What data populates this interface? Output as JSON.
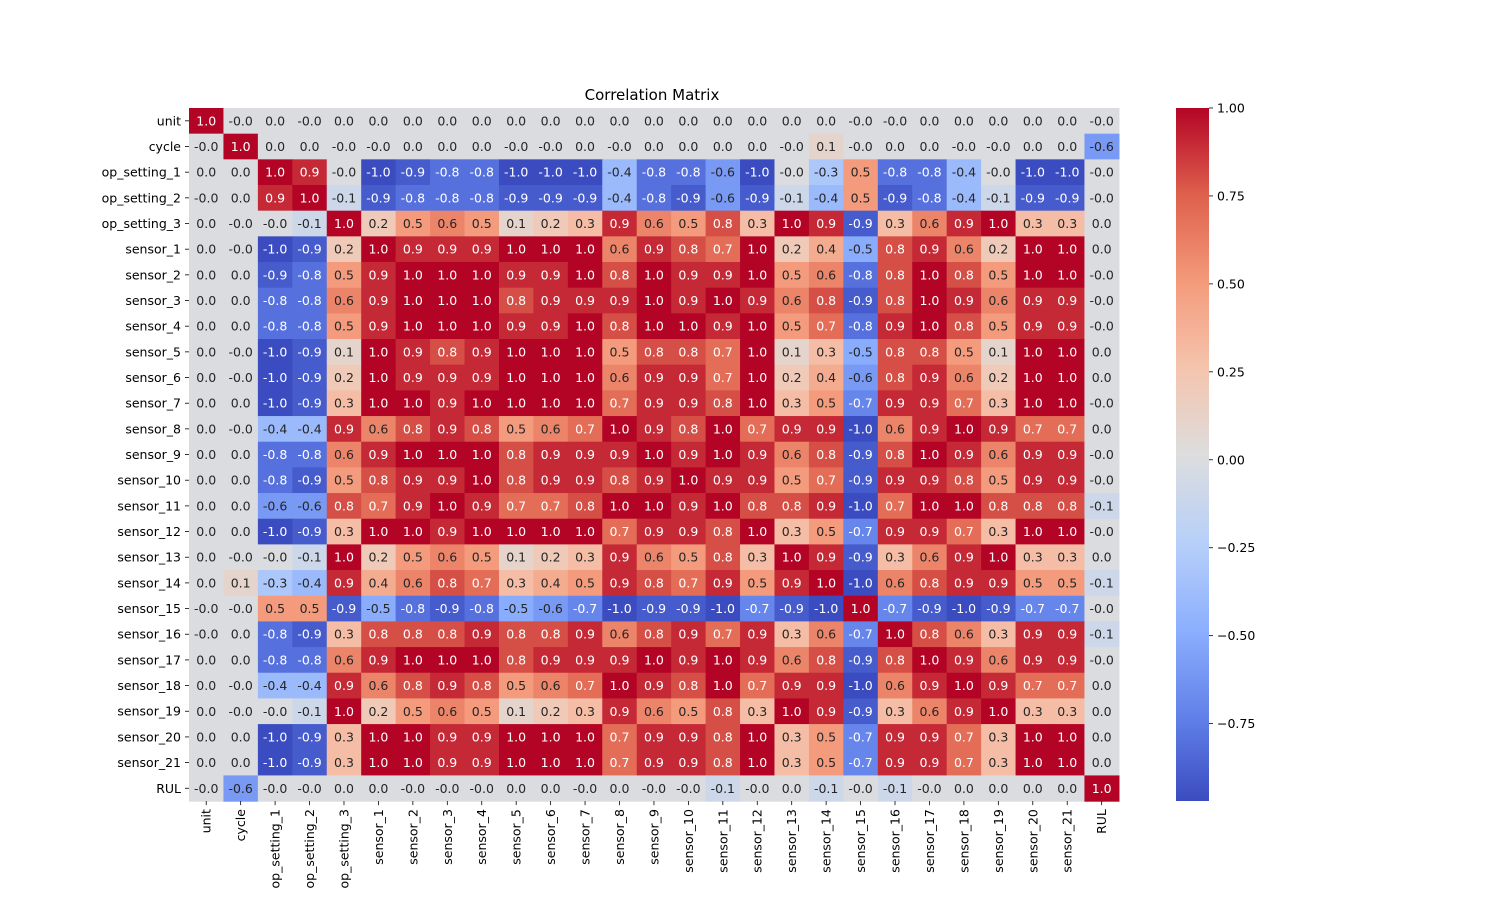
{
  "chart_data": {
    "type": "heatmap",
    "title": "Correlation Matrix",
    "xlabel": "",
    "ylabel": "",
    "labels": [
      "unit",
      "cycle",
      "op_setting_1",
      "op_setting_2",
      "op_setting_3",
      "sensor_1",
      "sensor_2",
      "sensor_3",
      "sensor_4",
      "sensor_5",
      "sensor_6",
      "sensor_7",
      "sensor_8",
      "sensor_9",
      "sensor_10",
      "sensor_11",
      "sensor_12",
      "sensor_13",
      "sensor_14",
      "sensor_15",
      "sensor_16",
      "sensor_17",
      "sensor_18",
      "sensor_19",
      "sensor_20",
      "sensor_21",
      "RUL"
    ],
    "values": [
      [
        1.0,
        -0.0,
        0.0,
        -0.0,
        0.0,
        0.0,
        0.0,
        0.0,
        0.0,
        0.0,
        0.0,
        0.0,
        0.0,
        0.0,
        0.0,
        0.0,
        0.0,
        0.0,
        0.0,
        -0.0,
        -0.0,
        0.0,
        0.0,
        0.0,
        0.0,
        0.0,
        -0.0
      ],
      [
        -0.0,
        1.0,
        0.0,
        0.0,
        -0.0,
        -0.0,
        0.0,
        0.0,
        0.0,
        -0.0,
        -0.0,
        0.0,
        -0.0,
        0.0,
        0.0,
        0.0,
        0.0,
        -0.0,
        0.1,
        -0.0,
        0.0,
        0.0,
        -0.0,
        -0.0,
        0.0,
        0.0,
        -0.6
      ],
      [
        0.0,
        0.0,
        1.0,
        0.9,
        -0.0,
        -1.0,
        -0.9,
        -0.8,
        -0.8,
        -1.0,
        -1.0,
        -1.0,
        -0.4,
        -0.8,
        -0.8,
        -0.6,
        -1.0,
        -0.0,
        -0.3,
        0.5,
        -0.8,
        -0.8,
        -0.4,
        -0.0,
        -1.0,
        -1.0,
        -0.0
      ],
      [
        -0.0,
        0.0,
        0.9,
        1.0,
        -0.1,
        -0.9,
        -0.8,
        -0.8,
        -0.8,
        -0.9,
        -0.9,
        -0.9,
        -0.4,
        -0.8,
        -0.9,
        -0.6,
        -0.9,
        -0.1,
        -0.4,
        0.5,
        -0.9,
        -0.8,
        -0.4,
        -0.1,
        -0.9,
        -0.9,
        -0.0
      ],
      [
        0.0,
        -0.0,
        -0.0,
        -0.1,
        1.0,
        0.2,
        0.5,
        0.6,
        0.5,
        0.1,
        0.2,
        0.3,
        0.9,
        0.6,
        0.5,
        0.8,
        0.3,
        1.0,
        0.9,
        -0.9,
        0.3,
        0.6,
        0.9,
        1.0,
        0.3,
        0.3,
        0.0
      ],
      [
        0.0,
        -0.0,
        -1.0,
        -0.9,
        0.2,
        1.0,
        0.9,
        0.9,
        0.9,
        1.0,
        1.0,
        1.0,
        0.6,
        0.9,
        0.8,
        0.7,
        1.0,
        0.2,
        0.4,
        -0.5,
        0.8,
        0.9,
        0.6,
        0.2,
        1.0,
        1.0,
        0.0
      ],
      [
        0.0,
        0.0,
        -0.9,
        -0.8,
        0.5,
        0.9,
        1.0,
        1.0,
        1.0,
        0.9,
        0.9,
        1.0,
        0.8,
        1.0,
        0.9,
        0.9,
        1.0,
        0.5,
        0.6,
        -0.8,
        0.8,
        1.0,
        0.8,
        0.5,
        1.0,
        1.0,
        -0.0
      ],
      [
        0.0,
        0.0,
        -0.8,
        -0.8,
        0.6,
        0.9,
        1.0,
        1.0,
        1.0,
        0.8,
        0.9,
        0.9,
        0.9,
        1.0,
        0.9,
        1.0,
        0.9,
        0.6,
        0.8,
        -0.9,
        0.8,
        1.0,
        0.9,
        0.6,
        0.9,
        0.9,
        -0.0
      ],
      [
        0.0,
        0.0,
        -0.8,
        -0.8,
        0.5,
        0.9,
        1.0,
        1.0,
        1.0,
        0.9,
        0.9,
        1.0,
        0.8,
        1.0,
        1.0,
        0.9,
        1.0,
        0.5,
        0.7,
        -0.8,
        0.9,
        1.0,
        0.8,
        0.5,
        0.9,
        0.9,
        -0.0
      ],
      [
        0.0,
        -0.0,
        -1.0,
        -0.9,
        0.1,
        1.0,
        0.9,
        0.8,
        0.9,
        1.0,
        1.0,
        1.0,
        0.5,
        0.8,
        0.8,
        0.7,
        1.0,
        0.1,
        0.3,
        -0.5,
        0.8,
        0.8,
        0.5,
        0.1,
        1.0,
        1.0,
        0.0
      ],
      [
        0.0,
        -0.0,
        -1.0,
        -0.9,
        0.2,
        1.0,
        0.9,
        0.9,
        0.9,
        1.0,
        1.0,
        1.0,
        0.6,
        0.9,
        0.9,
        0.7,
        1.0,
        0.2,
        0.4,
        -0.6,
        0.8,
        0.9,
        0.6,
        0.2,
        1.0,
        1.0,
        0.0
      ],
      [
        0.0,
        0.0,
        -1.0,
        -0.9,
        0.3,
        1.0,
        1.0,
        0.9,
        1.0,
        1.0,
        1.0,
        1.0,
        0.7,
        0.9,
        0.9,
        0.8,
        1.0,
        0.3,
        0.5,
        -0.7,
        0.9,
        0.9,
        0.7,
        0.3,
        1.0,
        1.0,
        -0.0
      ],
      [
        0.0,
        -0.0,
        -0.4,
        -0.4,
        0.9,
        0.6,
        0.8,
        0.9,
        0.8,
        0.5,
        0.6,
        0.7,
        1.0,
        0.9,
        0.8,
        1.0,
        0.7,
        0.9,
        0.9,
        -1.0,
        0.6,
        0.9,
        1.0,
        0.9,
        0.7,
        0.7,
        0.0
      ],
      [
        0.0,
        0.0,
        -0.8,
        -0.8,
        0.6,
        0.9,
        1.0,
        1.0,
        1.0,
        0.8,
        0.9,
        0.9,
        0.9,
        1.0,
        0.9,
        1.0,
        0.9,
        0.6,
        0.8,
        -0.9,
        0.8,
        1.0,
        0.9,
        0.6,
        0.9,
        0.9,
        -0.0
      ],
      [
        0.0,
        0.0,
        -0.8,
        -0.9,
        0.5,
        0.8,
        0.9,
        0.9,
        1.0,
        0.8,
        0.9,
        0.9,
        0.8,
        0.9,
        1.0,
        0.9,
        0.9,
        0.5,
        0.7,
        -0.9,
        0.9,
        0.9,
        0.8,
        0.5,
        0.9,
        0.9,
        -0.0
      ],
      [
        0.0,
        0.0,
        -0.6,
        -0.6,
        0.8,
        0.7,
        0.9,
        1.0,
        0.9,
        0.7,
        0.7,
        0.8,
        1.0,
        1.0,
        0.9,
        1.0,
        0.8,
        0.8,
        0.9,
        -1.0,
        0.7,
        1.0,
        1.0,
        0.8,
        0.8,
        0.8,
        -0.1
      ],
      [
        0.0,
        0.0,
        -1.0,
        -0.9,
        0.3,
        1.0,
        1.0,
        0.9,
        1.0,
        1.0,
        1.0,
        1.0,
        0.7,
        0.9,
        0.9,
        0.8,
        1.0,
        0.3,
        0.5,
        -0.7,
        0.9,
        0.9,
        0.7,
        0.3,
        1.0,
        1.0,
        -0.0
      ],
      [
        0.0,
        -0.0,
        -0.0,
        -0.1,
        1.0,
        0.2,
        0.5,
        0.6,
        0.5,
        0.1,
        0.2,
        0.3,
        0.9,
        0.6,
        0.5,
        0.8,
        0.3,
        1.0,
        0.9,
        -0.9,
        0.3,
        0.6,
        0.9,
        1.0,
        0.3,
        0.3,
        0.0
      ],
      [
        0.0,
        0.1,
        -0.3,
        -0.4,
        0.9,
        0.4,
        0.6,
        0.8,
        0.7,
        0.3,
        0.4,
        0.5,
        0.9,
        0.8,
        0.7,
        0.9,
        0.5,
        0.9,
        1.0,
        -1.0,
        0.6,
        0.8,
        0.9,
        0.9,
        0.5,
        0.5,
        -0.1
      ],
      [
        -0.0,
        -0.0,
        0.5,
        0.5,
        -0.9,
        -0.5,
        -0.8,
        -0.9,
        -0.8,
        -0.5,
        -0.6,
        -0.7,
        -1.0,
        -0.9,
        -0.9,
        -1.0,
        -0.7,
        -0.9,
        -1.0,
        1.0,
        -0.7,
        -0.9,
        -1.0,
        -0.9,
        -0.7,
        -0.7,
        -0.0
      ],
      [
        -0.0,
        0.0,
        -0.8,
        -0.9,
        0.3,
        0.8,
        0.8,
        0.8,
        0.9,
        0.8,
        0.8,
        0.9,
        0.6,
        0.8,
        0.9,
        0.7,
        0.9,
        0.3,
        0.6,
        -0.7,
        1.0,
        0.8,
        0.6,
        0.3,
        0.9,
        0.9,
        -0.1
      ],
      [
        0.0,
        0.0,
        -0.8,
        -0.8,
        0.6,
        0.9,
        1.0,
        1.0,
        1.0,
        0.8,
        0.9,
        0.9,
        0.9,
        1.0,
        0.9,
        1.0,
        0.9,
        0.6,
        0.8,
        -0.9,
        0.8,
        1.0,
        0.9,
        0.6,
        0.9,
        0.9,
        -0.0
      ],
      [
        0.0,
        -0.0,
        -0.4,
        -0.4,
        0.9,
        0.6,
        0.8,
        0.9,
        0.8,
        0.5,
        0.6,
        0.7,
        1.0,
        0.9,
        0.8,
        1.0,
        0.7,
        0.9,
        0.9,
        -1.0,
        0.6,
        0.9,
        1.0,
        0.9,
        0.7,
        0.7,
        0.0
      ],
      [
        0.0,
        -0.0,
        -0.0,
        -0.1,
        1.0,
        0.2,
        0.5,
        0.6,
        0.5,
        0.1,
        0.2,
        0.3,
        0.9,
        0.6,
        0.5,
        0.8,
        0.3,
        1.0,
        0.9,
        -0.9,
        0.3,
        0.6,
        0.9,
        1.0,
        0.3,
        0.3,
        0.0
      ],
      [
        0.0,
        0.0,
        -1.0,
        -0.9,
        0.3,
        1.0,
        1.0,
        0.9,
        0.9,
        1.0,
        1.0,
        1.0,
        0.7,
        0.9,
        0.9,
        0.8,
        1.0,
        0.3,
        0.5,
        -0.7,
        0.9,
        0.9,
        0.7,
        0.3,
        1.0,
        1.0,
        0.0
      ],
      [
        0.0,
        0.0,
        -1.0,
        -0.9,
        0.3,
        1.0,
        1.0,
        0.9,
        0.9,
        1.0,
        1.0,
        1.0,
        0.7,
        0.9,
        0.9,
        0.8,
        1.0,
        0.3,
        0.5,
        -0.7,
        0.9,
        0.9,
        0.7,
        0.3,
        1.0,
        1.0,
        0.0
      ],
      [
        -0.0,
        -0.6,
        -0.0,
        -0.0,
        0.0,
        0.0,
        -0.0,
        -0.0,
        -0.0,
        0.0,
        0.0,
        -0.0,
        0.0,
        -0.0,
        -0.0,
        -0.1,
        -0.0,
        0.0,
        -0.1,
        -0.0,
        -0.1,
        -0.0,
        0.0,
        0.0,
        0.0,
        0.0,
        1.0
      ]
    ],
    "colormap": "coolwarm",
    "colorbar": {
      "range": [
        -0.97,
        1.0
      ],
      "ticks": [
        1.0,
        0.75,
        0.5,
        0.25,
        0.0,
        -0.25,
        -0.5,
        -0.75
      ],
      "tick_labels": [
        "1.00",
        "0.75",
        "0.50",
        "0.25",
        "0.00",
        "−0.25",
        "−0.50",
        "−0.75"
      ]
    },
    "colors": {
      "low": "#3b4cc0",
      "mid": "#dddddd",
      "high": "#b40426"
    }
  }
}
